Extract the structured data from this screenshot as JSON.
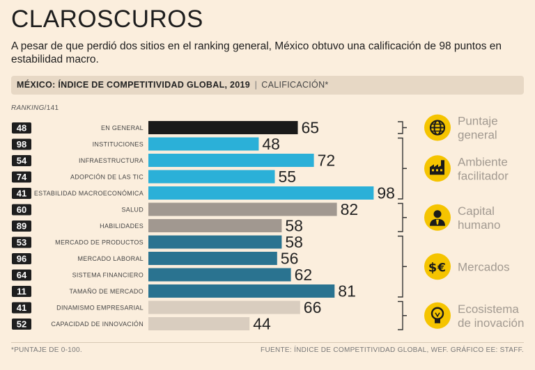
{
  "title": "CLAROSCUROS",
  "subtitle": "A pesar de que perdió dos sitios en el ranking general, México obtuvo una calificación de 98 puntos en estabilidad macro.",
  "band": {
    "title": "MÉXICO: ÍNDICE DE COMPETITIVIDAD GLOBAL, 2019",
    "separator": "|",
    "subtitle": "CALIFICACIÓN*"
  },
  "ranking_label": {
    "italic": "RANKING",
    "rest": "/141"
  },
  "footnote": "*PUNTAJE DE 0-100.",
  "source": "FUENTE: ÍNDICE DE COMPETITIVIDAD GLOBAL, WEF.  GRÁFICO EE: STAFF.",
  "chart_data": {
    "type": "bar",
    "orientation": "horizontal",
    "ylim": [
      0,
      100
    ],
    "categories": [
      "EN GENERAL",
      "INSTITUCIONES",
      "INFRAESTRUCTURA",
      "ADOPCIÓN DE LAS TIC",
      "ESTABILIDAD MACROECONÓMICA",
      "SALUD",
      "HABILIDADES",
      "MERCADO DE PRODUCTOS",
      "MERCADO LABORAL",
      "SISTEMA FINANCIERO",
      "TAMAÑO DE MERCADO",
      "DINAMISMO EMPRESARIAL",
      "CAPACIDAD DE INNOVACIÓN"
    ],
    "values": [
      65,
      48,
      72,
      55,
      98,
      82,
      58,
      58,
      56,
      62,
      81,
      66,
      44
    ],
    "rankings": [
      48,
      98,
      54,
      74,
      41,
      60,
      89,
      53,
      96,
      64,
      11,
      41,
      52
    ],
    "groups": [
      {
        "name": "Puntaje general",
        "lines": [
          "Puntaje",
          "general"
        ],
        "icon": "globe-icon",
        "color": "#1a1a1a",
        "start": 0,
        "end": 0
      },
      {
        "name": "Ambiente facilitador",
        "lines": [
          "Ambiente",
          "facilitador"
        ],
        "icon": "factory-icon",
        "color": "#2bb0d8",
        "start": 1,
        "end": 4
      },
      {
        "name": "Capital humano",
        "lines": [
          "Capital",
          "humano"
        ],
        "icon": "person-icon",
        "color": "#a19890",
        "start": 5,
        "end": 6
      },
      {
        "name": "Mercados",
        "lines": [
          "Mercados"
        ],
        "icon": "currency-icon",
        "color": "#2a7390",
        "start": 7,
        "end": 10
      },
      {
        "name": "Ecosistema de inovación",
        "lines": [
          "Ecosistema",
          "de inovación"
        ],
        "icon": "lightbulb-icon",
        "color": "#d9cdbf",
        "start": 11,
        "end": 12
      }
    ],
    "colors": {
      "badge": "#1e1e1e",
      "icon_fill": "#f5c400",
      "group_label": "#a29a91"
    }
  }
}
